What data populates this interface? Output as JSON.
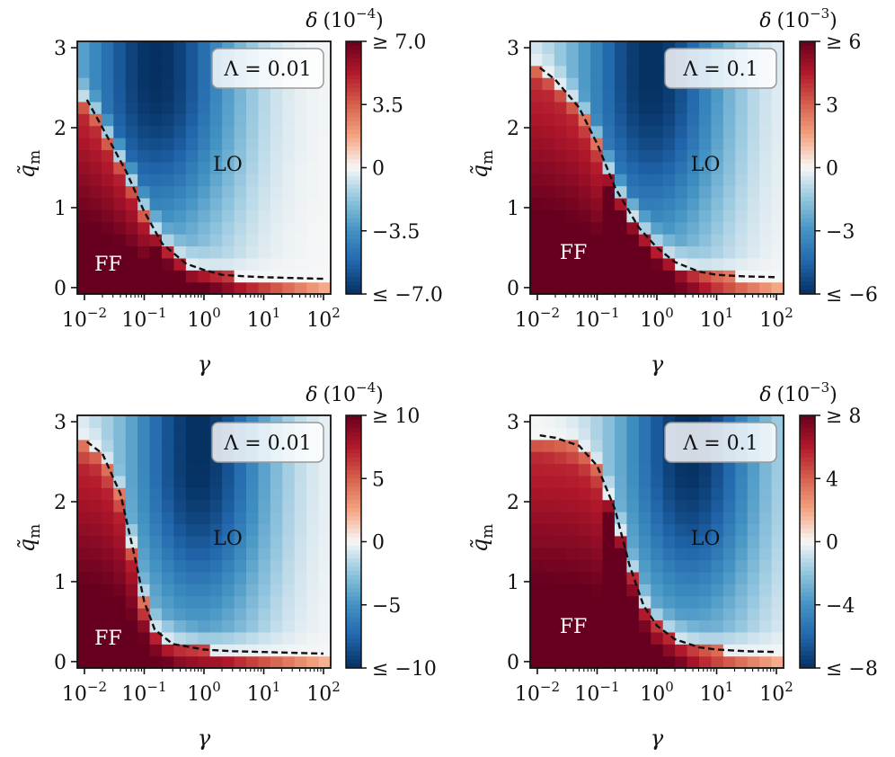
{
  "figure": {
    "panels": 4,
    "layout": "2x2 grid of heatmaps with colorbars"
  },
  "chart_data": [
    {
      "type": "heatmap",
      "title": "Λ = 0.01",
      "xlabel": "γ",
      "ylabel": "q̃",
      "ylabel_sub": "m",
      "x_scale": "log",
      "xlim": [
        0.01,
        100
      ],
      "ylim": [
        0,
        3
      ],
      "x_ticks": [
        {
          "value": 0.01,
          "base": "10",
          "exp": "−2"
        },
        {
          "value": 0.1,
          "base": "10",
          "exp": "−1"
        },
        {
          "value": 1,
          "base": "10",
          "exp": "0"
        },
        {
          "value": 10,
          "base": "10",
          "exp": "1"
        },
        {
          "value": 100,
          "base": "10",
          "exp": "2"
        }
      ],
      "y_ticks": [
        0,
        1,
        2,
        3
      ],
      "region_labels": [
        {
          "text": "LO",
          "gamma": 2.5,
          "q": 1.55,
          "color": "#111111"
        },
        {
          "text": "FF",
          "gamma": 0.025,
          "q": 0.3,
          "color": "#ffffff"
        }
      ],
      "colorbar": {
        "title_symbol": "δ",
        "title_units": "(10",
        "title_exp": "−4",
        "title_close": ")",
        "min": -7.0,
        "max": 7.0,
        "ticks": [
          {
            "value": 7.0,
            "label": "≥ 7.0"
          },
          {
            "value": 3.5,
            "label": "3.5"
          },
          {
            "value": 0,
            "label": "0"
          },
          {
            "value": -3.5,
            "label": "−3.5"
          },
          {
            "value": -7.0,
            "label": "≤ −7.0"
          }
        ]
      },
      "boundary": {
        "style": "dashed",
        "gamma": [
          0.011,
          0.02,
          0.05,
          0.1,
          0.2,
          0.5,
          1,
          2,
          5,
          10,
          30,
          100
        ],
        "q": [
          2.35,
          2.0,
          1.45,
          0.95,
          0.55,
          0.3,
          0.22,
          0.16,
          0.14,
          0.13,
          0.12,
          0.11
        ]
      },
      "field": {
        "minus_center": -0.8,
        "minus_width": 0.95,
        "minus_amp": 1.0,
        "minus_q": 2.6,
        "q_width": 1.5,
        "ff_soft": 0.22,
        "ff_floor": 0.65
      }
    },
    {
      "type": "heatmap",
      "title": "Λ = 0.1",
      "xlabel": "γ",
      "ylabel": "q̃",
      "ylabel_sub": "m",
      "x_scale": "log",
      "xlim": [
        0.01,
        100
      ],
      "ylim": [
        0,
        3
      ],
      "x_ticks": [
        {
          "value": 0.01,
          "base": "10",
          "exp": "−2"
        },
        {
          "value": 0.1,
          "base": "10",
          "exp": "−1"
        },
        {
          "value": 1,
          "base": "10",
          "exp": "0"
        },
        {
          "value": 10,
          "base": "10",
          "exp": "1"
        },
        {
          "value": 100,
          "base": "10",
          "exp": "2"
        }
      ],
      "y_ticks": [
        0,
        1,
        2,
        3
      ],
      "region_labels": [
        {
          "text": "LO",
          "gamma": 6.5,
          "q": 1.55,
          "color": "#111111"
        },
        {
          "text": "FF",
          "gamma": 0.04,
          "q": 0.45,
          "color": "#ffffff"
        }
      ],
      "colorbar": {
        "title_symbol": "δ",
        "title_units": "(10",
        "title_exp": "−3",
        "title_close": ")",
        "min": -6,
        "max": 6,
        "ticks": [
          {
            "value": 6,
            "label": "≥ 6"
          },
          {
            "value": 3,
            "label": "3"
          },
          {
            "value": 0,
            "label": "0"
          },
          {
            "value": -3,
            "label": "−3"
          },
          {
            "value": -6,
            "label": "≤ −6"
          }
        ]
      },
      "boundary": {
        "style": "dashed",
        "gamma": [
          0.011,
          0.02,
          0.05,
          0.1,
          0.2,
          0.5,
          1,
          2,
          5,
          10,
          30,
          100
        ],
        "q": [
          2.75,
          2.6,
          2.25,
          1.8,
          1.25,
          0.75,
          0.5,
          0.32,
          0.2,
          0.16,
          0.14,
          0.13
        ]
      },
      "field": {
        "minus_center": -0.1,
        "minus_width": 0.9,
        "minus_amp": 1.0,
        "minus_q": 2.6,
        "q_width": 1.6,
        "ff_soft": 0.22,
        "ff_floor": 0.65
      }
    },
    {
      "type": "heatmap",
      "title": "Λ = 0.01",
      "xlabel": "γ",
      "ylabel": "q̃",
      "ylabel_sub": "m",
      "x_scale": "log",
      "xlim": [
        0.01,
        100
      ],
      "ylim": [
        0,
        3
      ],
      "x_ticks": [
        {
          "value": 0.01,
          "base": "10",
          "exp": "−2"
        },
        {
          "value": 0.1,
          "base": "10",
          "exp": "−1"
        },
        {
          "value": 1,
          "base": "10",
          "exp": "0"
        },
        {
          "value": 10,
          "base": "10",
          "exp": "1"
        },
        {
          "value": 100,
          "base": "10",
          "exp": "2"
        }
      ],
      "y_ticks": [
        0,
        1,
        2,
        3
      ],
      "region_labels": [
        {
          "text": "LO",
          "gamma": 2.5,
          "q": 1.55,
          "color": "#111111"
        },
        {
          "text": "FF",
          "gamma": 0.025,
          "q": 0.3,
          "color": "#ffffff"
        }
      ],
      "colorbar": {
        "title_symbol": "δ",
        "title_units": "(10",
        "title_exp": "−4",
        "title_close": ")",
        "min": -10,
        "max": 10,
        "ticks": [
          {
            "value": 10,
            "label": "≥ 10"
          },
          {
            "value": 5,
            "label": "5"
          },
          {
            "value": 0,
            "label": "0"
          },
          {
            "value": -5,
            "label": "−5"
          },
          {
            "value": -10,
            "label": "≤ −10"
          }
        ]
      },
      "boundary": {
        "style": "dashed",
        "gamma": [
          0.011,
          0.02,
          0.04,
          0.07,
          0.1,
          0.15,
          0.3,
          1,
          3,
          10,
          30,
          100
        ],
        "q": [
          2.75,
          2.6,
          2.1,
          1.3,
          0.75,
          0.4,
          0.22,
          0.15,
          0.13,
          0.12,
          0.11,
          0.1
        ]
      },
      "field": {
        "minus_center": -0.1,
        "minus_width": 0.85,
        "minus_amp": 1.0,
        "minus_q": 2.5,
        "q_width": 1.6,
        "ff_soft": 0.3,
        "ff_floor": 0.6
      }
    },
    {
      "type": "heatmap",
      "title": "Λ = 0.1",
      "xlabel": "γ",
      "ylabel": "q̃",
      "ylabel_sub": "m",
      "x_scale": "log",
      "xlim": [
        0.01,
        100
      ],
      "ylim": [
        0,
        3
      ],
      "x_ticks": [
        {
          "value": 0.01,
          "base": "10",
          "exp": "−2"
        },
        {
          "value": 0.1,
          "base": "10",
          "exp": "−1"
        },
        {
          "value": 1,
          "base": "10",
          "exp": "0"
        },
        {
          "value": 10,
          "base": "10",
          "exp": "1"
        },
        {
          "value": 100,
          "base": "10",
          "exp": "2"
        }
      ],
      "y_ticks": [
        0,
        1,
        2,
        3
      ],
      "region_labels": [
        {
          "text": "LO",
          "gamma": 6.5,
          "q": 1.55,
          "color": "#111111"
        },
        {
          "text": "FF",
          "gamma": 0.04,
          "q": 0.45,
          "color": "#ffffff"
        }
      ],
      "colorbar": {
        "title_symbol": "δ",
        "title_units": "(10",
        "title_exp": "−3",
        "title_close": ")",
        "min": -8,
        "max": 8,
        "ticks": [
          {
            "value": 8,
            "label": "≥ 8"
          },
          {
            "value": 4,
            "label": "4"
          },
          {
            "value": 0,
            "label": "0"
          },
          {
            "value": -4,
            "label": "−4"
          },
          {
            "value": -8,
            "label": "≤ −8"
          }
        ]
      },
      "boundary": {
        "style": "dashed",
        "gamma": [
          0.011,
          0.02,
          0.05,
          0.1,
          0.2,
          0.35,
          0.6,
          1,
          2,
          5,
          10,
          30,
          100
        ],
        "q": [
          2.83,
          2.8,
          2.7,
          2.45,
          1.9,
          1.2,
          0.7,
          0.45,
          0.28,
          0.18,
          0.15,
          0.13,
          0.12
        ]
      },
      "field": {
        "minus_center": 0.55,
        "minus_width": 0.85,
        "minus_amp": 1.0,
        "minus_q": 2.6,
        "q_width": 1.6,
        "ff_soft": 0.28,
        "ff_floor": 0.65
      }
    }
  ]
}
